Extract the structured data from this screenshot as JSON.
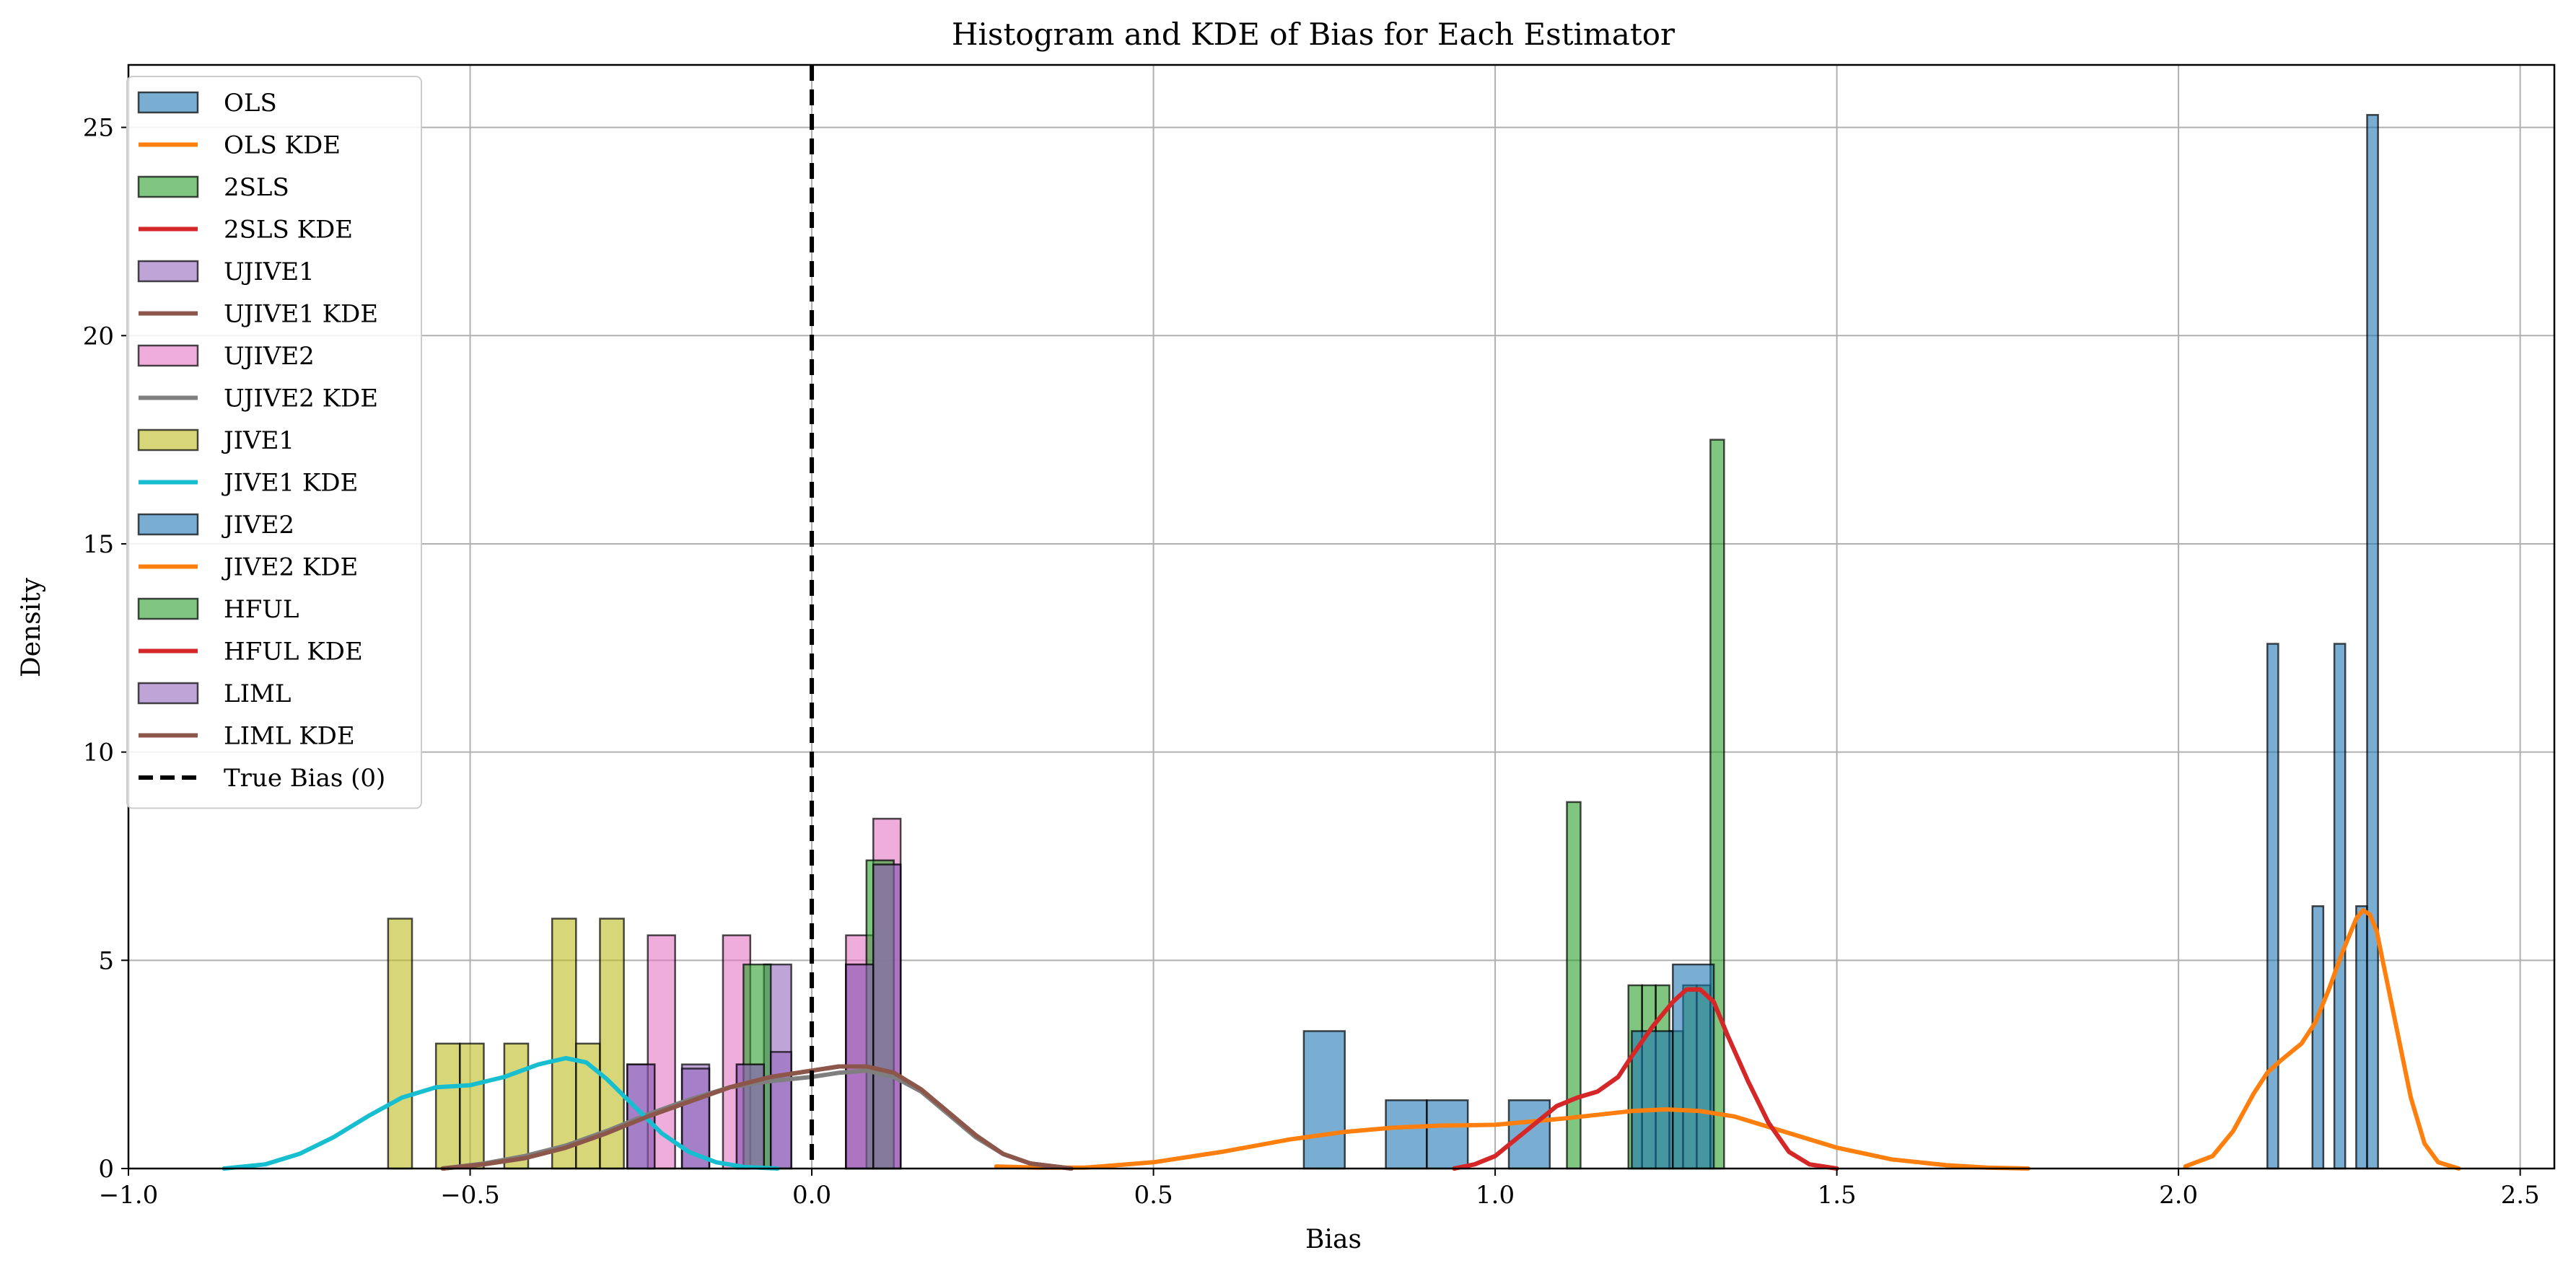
{
  "chart_data": {
    "type": "bar",
    "title": "Histogram and KDE of Bias for Each Estimator",
    "xlabel": "Bias",
    "ylabel": "Density",
    "xlim": [
      -1.0,
      2.55
    ],
    "ylim": [
      0,
      26.5
    ],
    "xticks": [
      -1.0,
      -0.5,
      0.0,
      0.5,
      1.0,
      1.5,
      2.0,
      2.5
    ],
    "xtick_labels": [
      "−1.0",
      "−0.5",
      "0.0",
      "0.5",
      "1.0",
      "1.5",
      "2.0",
      "2.5"
    ],
    "yticks": [
      0,
      5,
      10,
      15,
      20,
      25
    ],
    "ytick_labels": [
      "0",
      "5",
      "10",
      "15",
      "20",
      "25"
    ],
    "grid": true,
    "legend_position": "upper-left",
    "reference_line": {
      "name": "True Bias (0)",
      "x": 0,
      "color": "#000000",
      "style": "dashed"
    },
    "histograms": [
      {
        "name": "OLS",
        "color": "#1f77b4",
        "bins": [
          [
            2.13,
            2.146,
            12.6
          ],
          [
            2.196,
            2.212,
            6.3
          ],
          [
            2.228,
            2.244,
            12.6
          ],
          [
            2.26,
            2.276,
            6.3
          ],
          [
            2.276,
            2.292,
            25.3
          ]
        ]
      },
      {
        "name": "2SLS",
        "color": "#2ca02c",
        "bins": [
          [
            1.105,
            1.125,
            8.8
          ],
          [
            1.195,
            1.215,
            4.4
          ],
          [
            1.215,
            1.235,
            4.4
          ],
          [
            1.235,
            1.255,
            4.4
          ],
          [
            1.255,
            1.275,
            3.3
          ],
          [
            1.275,
            1.295,
            4.4
          ],
          [
            1.295,
            1.315,
            4.4
          ],
          [
            1.315,
            1.335,
            17.5
          ]
        ]
      },
      {
        "name": "UJIVE1",
        "color": "#9467bd",
        "bins": [
          [
            -0.27,
            -0.23,
            2.5
          ],
          [
            -0.19,
            -0.15,
            2.5
          ],
          [
            -0.11,
            -0.07,
            2.5
          ],
          [
            -0.07,
            -0.03,
            4.9
          ],
          [
            0.05,
            0.09,
            4.9
          ],
          [
            0.09,
            0.13,
            7.3
          ]
        ]
      },
      {
        "name": "UJIVE2",
        "color": "#e377c2",
        "bins": [
          [
            -0.24,
            -0.2,
            5.6
          ],
          [
            -0.13,
            -0.09,
            5.6
          ],
          [
            0.05,
            0.09,
            5.6
          ],
          [
            0.09,
            0.13,
            8.4
          ]
        ]
      },
      {
        "name": "JIVE1",
        "color": "#bcbd22",
        "bins": [
          [
            -0.62,
            -0.585,
            6.0
          ],
          [
            -0.55,
            -0.515,
            3.0
          ],
          [
            -0.515,
            -0.48,
            3.0
          ],
          [
            -0.45,
            -0.415,
            3.0
          ],
          [
            -0.38,
            -0.345,
            6.0
          ],
          [
            -0.345,
            -0.31,
            3.0
          ],
          [
            -0.31,
            -0.275,
            6.0
          ]
        ]
      },
      {
        "name": "JIVE2",
        "color": "#1f77b4",
        "bins": [
          [
            0.72,
            0.78,
            3.3
          ],
          [
            0.84,
            0.9,
            1.64
          ],
          [
            0.9,
            0.96,
            1.64
          ],
          [
            1.02,
            1.08,
            1.64
          ],
          [
            1.2,
            1.26,
            3.3
          ],
          [
            1.26,
            1.32,
            4.9
          ]
        ]
      },
      {
        "name": "HFUL",
        "color": "#2ca02c",
        "bins": [
          [
            -0.1,
            -0.06,
            4.9
          ],
          [
            0.08,
            0.12,
            7.4
          ]
        ]
      },
      {
        "name": "LIML",
        "color": "#9467bd",
        "bins": [
          [
            -0.27,
            -0.23,
            2.5
          ],
          [
            -0.19,
            -0.15,
            2.4
          ],
          [
            -0.11,
            -0.07,
            2.5
          ],
          [
            -0.06,
            -0.03,
            2.8
          ],
          [
            0.05,
            0.09,
            4.9
          ],
          [
            0.09,
            0.13,
            7.3
          ]
        ]
      }
    ],
    "series": [
      {
        "name": "OLS KDE",
        "color": "#ff7f0e",
        "x": [
          2.01,
          2.05,
          2.08,
          2.11,
          2.13,
          2.15,
          2.18,
          2.2,
          2.22,
          2.24,
          2.26,
          2.27,
          2.28,
          2.29,
          2.3,
          2.32,
          2.34,
          2.36,
          2.38,
          2.41
        ],
        "y": [
          0.05,
          0.3,
          0.9,
          1.8,
          2.3,
          2.6,
          3.0,
          3.5,
          4.3,
          5.2,
          6.0,
          6.2,
          6.1,
          5.7,
          4.9,
          3.3,
          1.7,
          0.6,
          0.15,
          0
        ]
      },
      {
        "name": "2SLS KDE",
        "color": "#d62728",
        "x": [
          0.94,
          0.97,
          1.0,
          1.03,
          1.06,
          1.09,
          1.12,
          1.15,
          1.18,
          1.2,
          1.23,
          1.26,
          1.28,
          1.3,
          1.32,
          1.34,
          1.37,
          1.4,
          1.43,
          1.46,
          1.5
        ],
        "y": [
          0,
          0.1,
          0.3,
          0.7,
          1.1,
          1.5,
          1.7,
          1.85,
          2.2,
          2.7,
          3.4,
          4.0,
          4.3,
          4.3,
          4.0,
          3.2,
          2.1,
          1.1,
          0.4,
          0.1,
          0
        ]
      },
      {
        "name": "UJIVE1 KDE",
        "color": "#8c564b",
        "x": [
          -0.54,
          -0.48,
          -0.42,
          -0.36,
          -0.3,
          -0.24,
          -0.18,
          -0.12,
          -0.06,
          0.0,
          0.04,
          0.08,
          0.12,
          0.16,
          0.2,
          0.24,
          0.28,
          0.32,
          0.38
        ],
        "y": [
          0,
          0.1,
          0.25,
          0.5,
          0.85,
          1.25,
          1.6,
          1.95,
          2.2,
          2.35,
          2.45,
          2.45,
          2.3,
          1.9,
          1.35,
          0.8,
          0.35,
          0.12,
          0
        ]
      },
      {
        "name": "UJIVE2 KDE",
        "color": "#7f7f7f",
        "x": [
          -0.54,
          -0.48,
          -0.42,
          -0.36,
          -0.3,
          -0.24,
          -0.18,
          -0.12,
          -0.06,
          0.0,
          0.04,
          0.08,
          0.12,
          0.16,
          0.2,
          0.24,
          0.28,
          0.32,
          0.38
        ],
        "y": [
          0,
          0.12,
          0.3,
          0.55,
          0.9,
          1.3,
          1.65,
          1.95,
          2.1,
          2.2,
          2.3,
          2.35,
          2.2,
          1.85,
          1.3,
          0.75,
          0.35,
          0.12,
          0
        ]
      },
      {
        "name": "JIVE1 KDE",
        "color": "#17becf",
        "x": [
          -0.86,
          -0.8,
          -0.75,
          -0.7,
          -0.65,
          -0.6,
          -0.55,
          -0.5,
          -0.45,
          -0.4,
          -0.36,
          -0.33,
          -0.3,
          -0.26,
          -0.22,
          -0.18,
          -0.14,
          -0.1,
          -0.05
        ],
        "y": [
          0,
          0.1,
          0.35,
          0.75,
          1.25,
          1.7,
          1.95,
          2.0,
          2.2,
          2.5,
          2.65,
          2.55,
          2.15,
          1.5,
          0.85,
          0.4,
          0.15,
          0.04,
          0
        ]
      },
      {
        "name": "JIVE2 KDE",
        "color": "#ff7f0e",
        "x": [
          0.27,
          0.33,
          0.4,
          0.5,
          0.6,
          0.7,
          0.78,
          0.85,
          0.92,
          1.0,
          1.1,
          1.2,
          1.25,
          1.3,
          1.35,
          1.42,
          1.5,
          1.58,
          1.66,
          1.72,
          1.78
        ],
        "y": [
          0.05,
          0.02,
          0.02,
          0.15,
          0.4,
          0.7,
          0.88,
          0.98,
          1.03,
          1.05,
          1.2,
          1.38,
          1.42,
          1.38,
          1.25,
          0.9,
          0.5,
          0.22,
          0.08,
          0.02,
          0
        ]
      },
      {
        "name": "HFUL KDE",
        "color": "#d62728",
        "x": [
          0.94,
          0.97,
          1.0,
          1.03,
          1.06,
          1.09,
          1.12,
          1.15,
          1.18,
          1.2,
          1.23,
          1.26,
          1.28,
          1.3,
          1.32,
          1.34,
          1.37,
          1.4,
          1.43,
          1.46,
          1.5
        ],
        "y": [
          0,
          0.1,
          0.3,
          0.7,
          1.1,
          1.5,
          1.7,
          1.85,
          2.2,
          2.7,
          3.4,
          4.0,
          4.3,
          4.3,
          4.0,
          3.2,
          2.1,
          1.1,
          0.4,
          0.1,
          0
        ]
      },
      {
        "name": "LIML KDE",
        "color": "#8c564b",
        "x": [
          -0.54,
          -0.48,
          -0.42,
          -0.36,
          -0.3,
          -0.24,
          -0.18,
          -0.12,
          -0.06,
          0.0,
          0.04,
          0.08,
          0.12,
          0.16,
          0.2,
          0.24,
          0.28,
          0.32,
          0.38
        ],
        "y": [
          0,
          0.1,
          0.25,
          0.5,
          0.85,
          1.25,
          1.6,
          1.95,
          2.2,
          2.35,
          2.45,
          2.45,
          2.3,
          1.9,
          1.35,
          0.8,
          0.35,
          0.12,
          0
        ]
      }
    ],
    "legend": [
      {
        "label": "OLS",
        "kind": "patch",
        "color": "#1f77b4"
      },
      {
        "label": "OLS KDE",
        "kind": "line",
        "color": "#ff7f0e"
      },
      {
        "label": "2SLS",
        "kind": "patch",
        "color": "#2ca02c"
      },
      {
        "label": "2SLS KDE",
        "kind": "line",
        "color": "#d62728"
      },
      {
        "label": "UJIVE1",
        "kind": "patch",
        "color": "#9467bd"
      },
      {
        "label": "UJIVE1 KDE",
        "kind": "line",
        "color": "#8c564b"
      },
      {
        "label": "UJIVE2",
        "kind": "patch",
        "color": "#e377c2"
      },
      {
        "label": "UJIVE2 KDE",
        "kind": "line",
        "color": "#7f7f7f"
      },
      {
        "label": "JIVE1",
        "kind": "patch",
        "color": "#bcbd22"
      },
      {
        "label": "JIVE1 KDE",
        "kind": "line",
        "color": "#17becf"
      },
      {
        "label": "JIVE2",
        "kind": "patch",
        "color": "#1f77b4"
      },
      {
        "label": "JIVE2 KDE",
        "kind": "line",
        "color": "#ff7f0e"
      },
      {
        "label": "HFUL",
        "kind": "patch",
        "color": "#2ca02c"
      },
      {
        "label": "HFUL KDE",
        "kind": "line",
        "color": "#d62728"
      },
      {
        "label": "LIML",
        "kind": "patch",
        "color": "#9467bd"
      },
      {
        "label": "LIML KDE",
        "kind": "line",
        "color": "#8c564b"
      },
      {
        "label": "True Bias (0)",
        "kind": "dashed",
        "color": "#000000"
      }
    ]
  }
}
